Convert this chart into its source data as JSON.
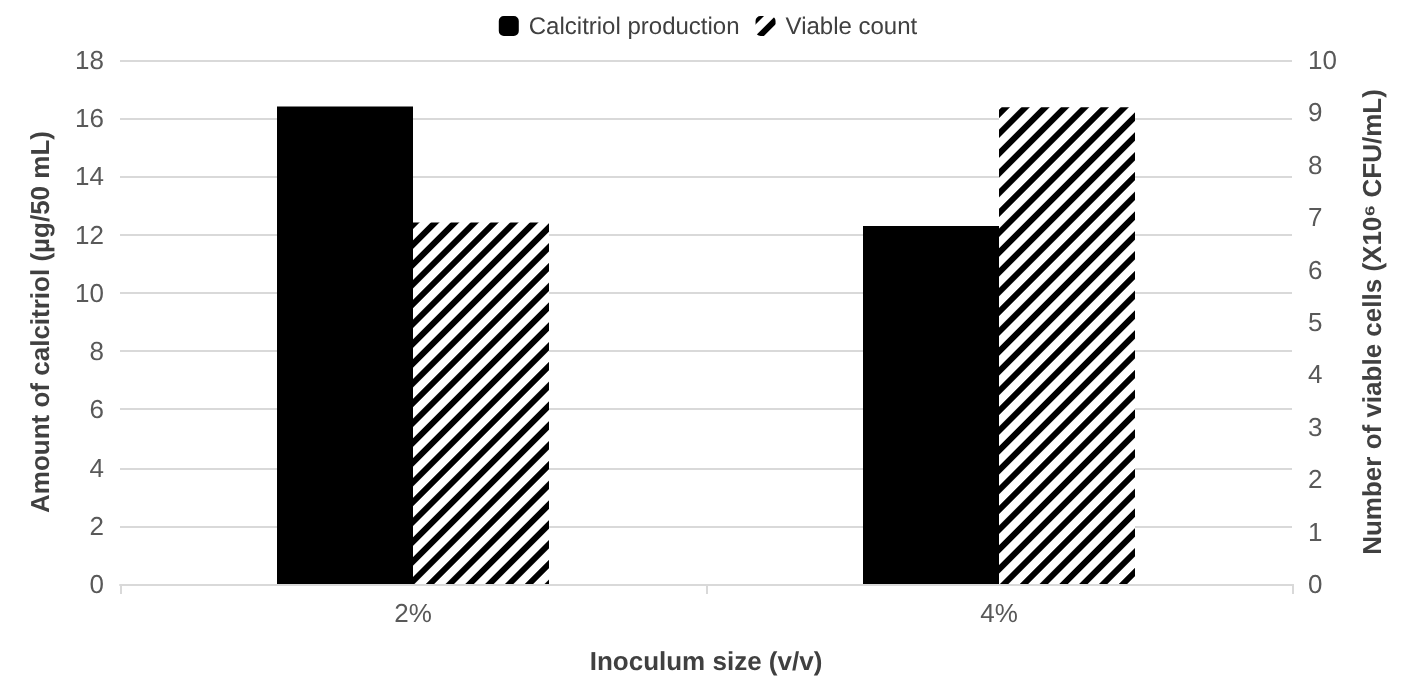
{
  "chart_data": {
    "type": "bar",
    "xlabel": "Inoculum size (v/v)",
    "ylabel": "Amount of calcitriol (µg/50 mL)",
    "y2label": "Number of viable cells (X10⁶ CFU/mL)",
    "categories": [
      "2%",
      "4%"
    ],
    "series": [
      {
        "name": "Calcitriol production",
        "color": "#000000",
        "values": [
          16.4,
          12.3
        ]
      },
      {
        "name": "Viable count",
        "color": "#000000",
        "values": [
          6.9,
          9.1
        ],
        "axis": "y2"
      }
    ],
    "ylim": [
      0,
      18
    ],
    "yticks": [
      0,
      2,
      4,
      6,
      8,
      10,
      12,
      14,
      16,
      18
    ],
    "y2lim": [
      0,
      10
    ],
    "y2ticks": [
      0,
      1,
      2,
      3,
      4,
      5,
      6,
      7,
      8,
      9,
      10
    ],
    "grid": "y",
    "legend": "top"
  }
}
